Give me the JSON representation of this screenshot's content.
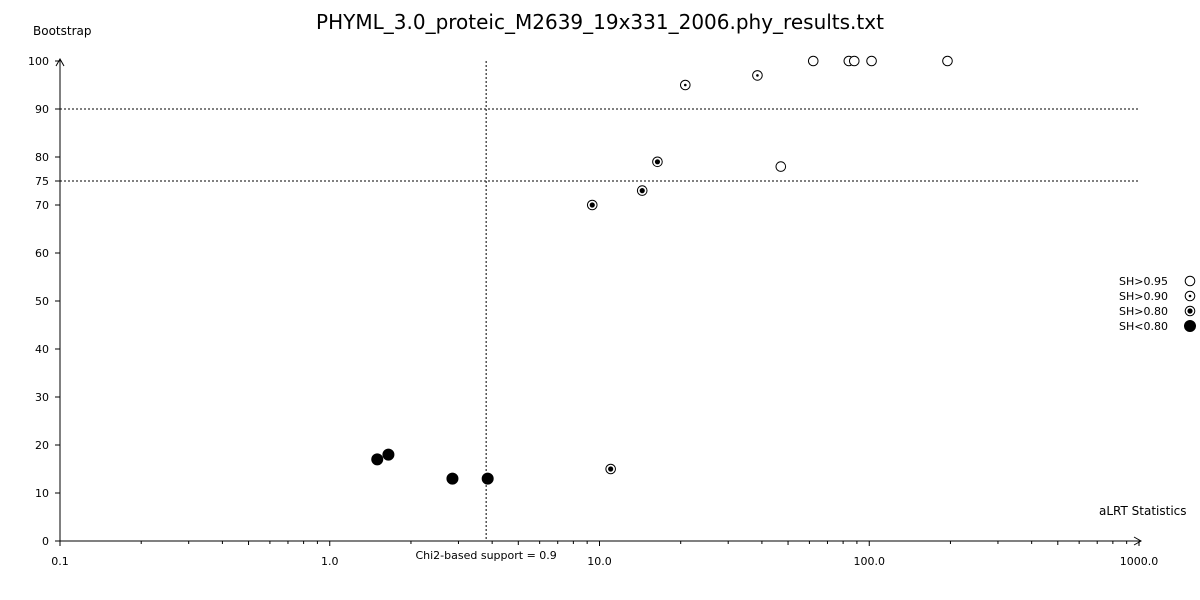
{
  "chart_data": {
    "type": "scatter",
    "title": "PHYML_3.0_proteic_M2639_19x331_2006.phy_results.txt",
    "xlabel": "aLRT Statistics",
    "ylabel": "Bootstrap",
    "x_scale": "log",
    "xlim": [
      0.1,
      1000.0
    ],
    "ylim": [
      0,
      100
    ],
    "x_tick_labels": [
      {
        "value": 0.1,
        "label": "0.1"
      },
      {
        "value": 1.0,
        "label": "1.0"
      },
      {
        "value": 10.0,
        "label": "10.0"
      },
      {
        "value": 100.0,
        "label": "100.0"
      },
      {
        "value": 1000.0,
        "label": "1000.0"
      }
    ],
    "y_ticks": [
      0,
      10,
      20,
      30,
      40,
      50,
      60,
      70,
      75,
      80,
      90,
      100
    ],
    "grid": false,
    "reference_lines": {
      "vertical": {
        "x": 3.8,
        "label": "Chi2-based support = 0.9"
      },
      "horizontal": [
        90,
        75
      ]
    },
    "legend_position": "right",
    "series": [
      {
        "name": "SH>0.95",
        "marker": "open-circle",
        "points": [
          {
            "x": 62,
            "y": 100
          },
          {
            "x": 84,
            "y": 100
          },
          {
            "x": 88,
            "y": 100
          },
          {
            "x": 102,
            "y": 100
          },
          {
            "x": 195,
            "y": 100
          },
          {
            "x": 47,
            "y": 78
          }
        ]
      },
      {
        "name": "SH>0.90",
        "marker": "circle-small-dot",
        "points": [
          {
            "x": 20.8,
            "y": 95
          },
          {
            "x": 38.5,
            "y": 97
          }
        ]
      },
      {
        "name": "SH>0.80",
        "marker": "circle-big-dot",
        "points": [
          {
            "x": 16.4,
            "y": 79
          },
          {
            "x": 14.4,
            "y": 73
          },
          {
            "x": 9.4,
            "y": 70
          },
          {
            "x": 11.0,
            "y": 15
          }
        ]
      },
      {
        "name": "SH<0.80",
        "marker": "filled-circle",
        "points": [
          {
            "x": 1.5,
            "y": 17
          },
          {
            "x": 1.65,
            "y": 18
          },
          {
            "x": 2.85,
            "y": 13
          },
          {
            "x": 3.85,
            "y": 13
          }
        ]
      }
    ]
  }
}
